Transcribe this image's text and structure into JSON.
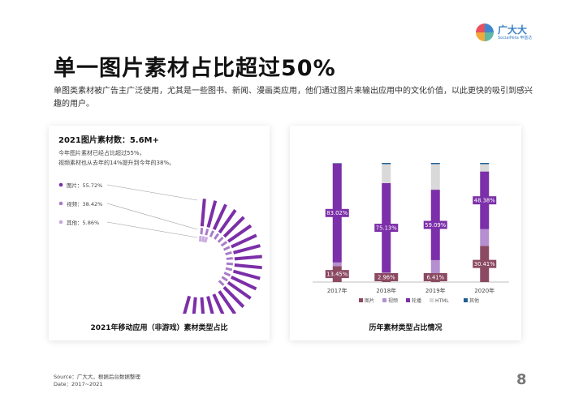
{
  "logo": {
    "name": "广大大",
    "sub": "SocialPeta 甲基达"
  },
  "header": {
    "title": "单一图片素材占比超过50%",
    "subtitle": "单图类素材被广告主广泛使用，尤其是一些图书、新闻、漫画类应用，他们通过图片来输出应用中的文化价值，以此更快的吸引到感兴趣的用户。"
  },
  "left_card": {
    "heading": "2021图片素材数：5.6M+",
    "note_lines": [
      "今年图片素材已经占比超过55%，",
      "视频素材也从去年的14%提升到今年的38%。"
    ],
    "footer": "2021年移动应用（非游戏）素材类型占比"
  },
  "right_card": {
    "footer": "历年素材类型占比情况"
  },
  "source": {
    "line1": "Source：广大大，根据后台数据整理",
    "line2": "Date：2017~2021"
  },
  "page_number": "8",
  "colors": {
    "image": "#8b4a62",
    "video": "#b58fd0",
    "carousel": "#7b2fa8",
    "html": "#d9d9d9",
    "other": "#1f5f93"
  },
  "chart_data": [
    {
      "type": "pie",
      "title": "2021年移动应用（非游戏）素材类型占比",
      "style": "radial-bar",
      "slices": [
        {
          "name": "图片",
          "label": "图片：55.72%",
          "value": 55.72,
          "color": "#7b2fa8"
        },
        {
          "name": "视频",
          "label": "视频：38.42%",
          "value": 38.42,
          "color": "#a87bc8"
        },
        {
          "name": "其他",
          "label": "其他：5.86%",
          "value": 5.86,
          "color": "#c9a8df"
        }
      ]
    },
    {
      "type": "bar",
      "stacked": true,
      "normalized": true,
      "title": "历年素材类型占比情况",
      "categories": [
        "2017年",
        "2018年",
        "2019年",
        "2020年"
      ],
      "ylim": [
        0,
        100
      ],
      "legend_position": "bottom",
      "series": [
        {
          "name": "图片",
          "values": [
            13.45,
            2.96,
            6.41,
            30.41
          ],
          "color": "#8b4a62"
        },
        {
          "name": "视频",
          "values": [
            3.0,
            5.0,
            12.0,
            14.0
          ],
          "color": "#b58fd0"
        },
        {
          "name": "轮播",
          "values": [
            83.02,
            75.13,
            59.09,
            48.38
          ],
          "color": "#7b2fa8"
        },
        {
          "name": "HTML",
          "values": [
            0.5,
            15.9,
            21.5,
            6.2
          ],
          "color": "#d9d9d9"
        },
        {
          "name": "其他",
          "values": [
            0.03,
            1.01,
            1.0,
            1.01
          ],
          "color": "#1f5f93"
        }
      ],
      "data_labels": [
        {
          "series": "图片",
          "category": "2017年",
          "text": "13.45%"
        },
        {
          "series": "轮播",
          "category": "2017年",
          "text": "83.02%"
        },
        {
          "series": "图片",
          "category": "2018年",
          "text": "2.96%"
        },
        {
          "series": "轮播",
          "category": "2018年",
          "text": "75.13%"
        },
        {
          "series": "图片",
          "category": "2019年",
          "text": "6.41%"
        },
        {
          "series": "轮播",
          "category": "2019年",
          "text": "59.09%"
        },
        {
          "series": "图片",
          "category": "2020年",
          "text": "30.41%"
        },
        {
          "series": "轮播",
          "category": "2020年",
          "text": "48.38%"
        }
      ]
    }
  ]
}
